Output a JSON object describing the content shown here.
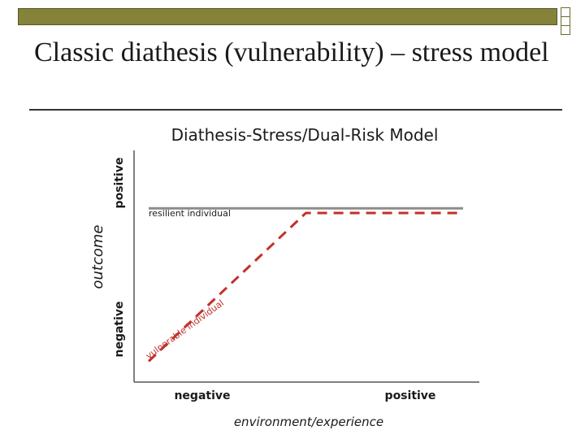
{
  "slide": {
    "title": "Classic diathesis (vulnerability) – stress model"
  },
  "chart_data": {
    "type": "line",
    "title": "Diathesis-Stress/Dual-Risk Model",
    "xlabel": "environment/experience",
    "ylabel": "outcome",
    "x_ticks": [
      "negative",
      "positive"
    ],
    "y_ticks": [
      "negative",
      "positive"
    ],
    "xlim": [
      0,
      1
    ],
    "ylim": [
      0,
      1
    ],
    "series": [
      {
        "name": "resilient individual",
        "style": "solid",
        "color": "#8c8c8c",
        "x": [
          0,
          1
        ],
        "y": [
          0.75,
          0.75
        ]
      },
      {
        "name": "vulnerable individual",
        "style": "dashed",
        "color": "#c0312b",
        "x": [
          0,
          0.5,
          1
        ],
        "y": [
          0.09,
          0.73,
          0.73
        ]
      }
    ]
  },
  "colors": {
    "top_bar": "#85823a",
    "resilient_line": "#8c8c8c",
    "vulnerable_line": "#c0312b"
  }
}
